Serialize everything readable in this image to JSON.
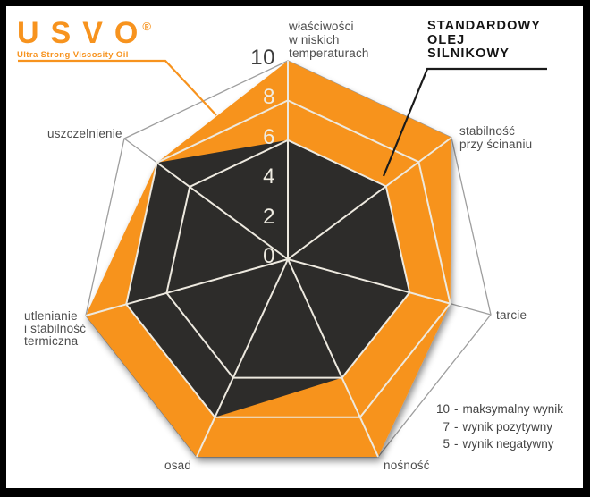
{
  "page": {
    "background": "#ffffff",
    "frame_color": "#000000"
  },
  "logo": {
    "title": "USVO",
    "registered": "®",
    "subtitle": "Ultra Strong Viscosity Oil",
    "color": "#F7931E"
  },
  "standard_callout": {
    "text": "STANDARDOWY\nOLEJ\nSILNIKOWY"
  },
  "chart_data": {
    "type": "radar",
    "axes": [
      "właściwości w niskich temperaturach",
      "stabilność przy ścinaniu",
      "tarcie",
      "nośność",
      "osad",
      "utlenianie i stabilność termiczna",
      "uszczelnienie"
    ],
    "axis_labels_display": [
      {
        "text": "właściwości\nw niskich\ntemperaturach"
      },
      {
        "text": "stabilność\nprzy ścinaniu"
      },
      {
        "text": "tarcie"
      },
      {
        "text": "nośność"
      },
      {
        "text": "osad"
      },
      {
        "text": "utlenianie\ni stabilność\ntermiczna"
      },
      {
        "text": "uszczelnienie"
      }
    ],
    "scale": {
      "min": 0,
      "max": 10,
      "ticks": [
        10,
        8,
        6,
        4,
        2,
        0
      ],
      "grid_rings": [
        6,
        8,
        10
      ]
    },
    "series": [
      {
        "name": "USVO",
        "color": "#F7931E",
        "values": [
          10,
          10,
          8,
          10,
          10,
          10,
          8
        ]
      },
      {
        "name": "STANDARDOWY OLEJ SILNIKOWY",
        "color": "#2D2C2A",
        "values": [
          6,
          6,
          6,
          6,
          8,
          8,
          8
        ]
      }
    ],
    "legend_separator": "-",
    "legend": [
      {
        "score": "10",
        "desc": "maksymalny wynik"
      },
      {
        "score": "7",
        "desc": "wynik pozytywny"
      },
      {
        "score": "5",
        "desc": "wynik negatywny"
      }
    ]
  },
  "colors": {
    "grid_light": "#EDE9DF",
    "grid_gray": "#9E9E9E",
    "label_gray": "#4d4d4d",
    "tick_light": "#EFECE2",
    "tick_dark": "#3C3C3C",
    "callout_black": "#1a1a1a"
  }
}
